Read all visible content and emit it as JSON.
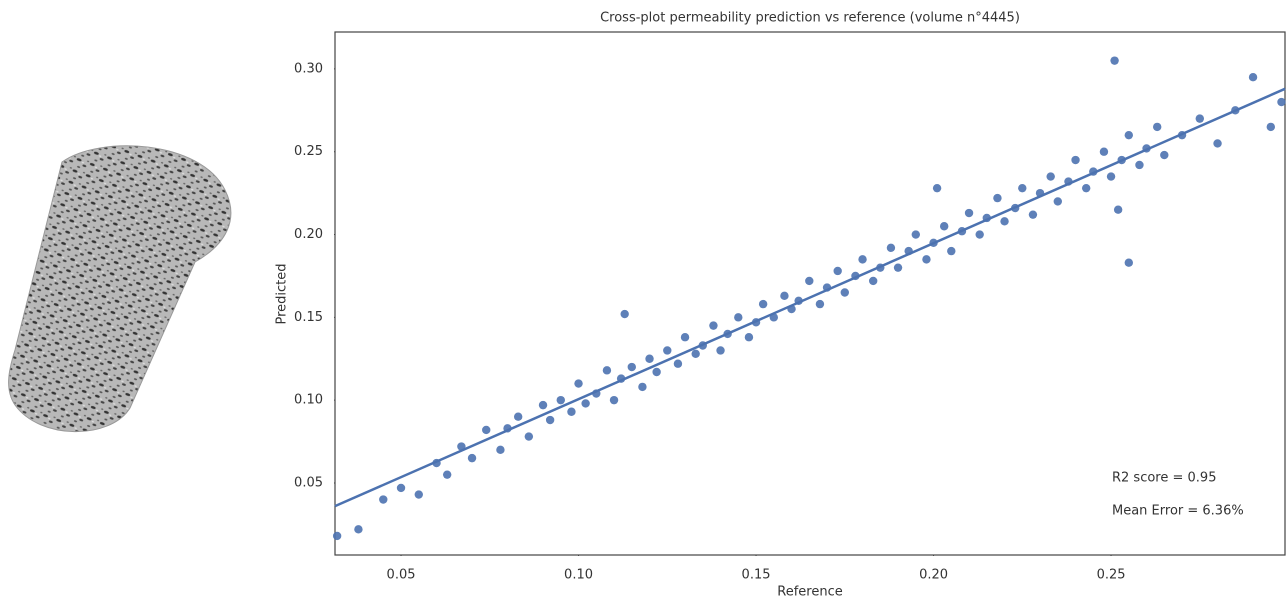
{
  "chart_data": {
    "type": "scatter",
    "title": "Cross-plot permeability prediction vs reference (volume n°4445)",
    "x_label": "Reference",
    "y_label": "Predicted",
    "annotations": [
      "R2 score = 0.95",
      "Mean Error = 6.36%"
    ],
    "color": "#4c72b0",
    "x": [
      0.032,
      0.038,
      0.045,
      0.05,
      0.055,
      0.06,
      0.063,
      0.067,
      0.07,
      0.074,
      0.078,
      0.08,
      0.083,
      0.086,
      0.09,
      0.092,
      0.095,
      0.098,
      0.1,
      0.102,
      0.105,
      0.108,
      0.11,
      0.112,
      0.115,
      0.118,
      0.12,
      0.122,
      0.125,
      0.128,
      0.13,
      0.133,
      0.135,
      0.138,
      0.14,
      0.142,
      0.145,
      0.148,
      0.15,
      0.152,
      0.155,
      0.158,
      0.16,
      0.162,
      0.165,
      0.168,
      0.17,
      0.173,
      0.175,
      0.178,
      0.18,
      0.183,
      0.185,
      0.188,
      0.19,
      0.193,
      0.195,
      0.198,
      0.2,
      0.203,
      0.205,
      0.208,
      0.21,
      0.213,
      0.215,
      0.218,
      0.22,
      0.223,
      0.225,
      0.228,
      0.23,
      0.233,
      0.235,
      0.238,
      0.24,
      0.243,
      0.245,
      0.248,
      0.25,
      0.253,
      0.255,
      0.258,
      0.26,
      0.263,
      0.265,
      0.27,
      0.275,
      0.28,
      0.285,
      0.29,
      0.295,
      0.298,
      0.113,
      0.201,
      0.251,
      0.252,
      0.255
    ],
    "y": [
      0.018,
      0.022,
      0.04,
      0.047,
      0.043,
      0.062,
      0.055,
      0.072,
      0.065,
      0.082,
      0.07,
      0.083,
      0.09,
      0.078,
      0.097,
      0.088,
      0.1,
      0.093,
      0.11,
      0.098,
      0.104,
      0.118,
      0.1,
      0.113,
      0.12,
      0.108,
      0.125,
      0.117,
      0.13,
      0.122,
      0.138,
      0.128,
      0.133,
      0.145,
      0.13,
      0.14,
      0.15,
      0.138,
      0.147,
      0.158,
      0.15,
      0.163,
      0.155,
      0.16,
      0.172,
      0.158,
      0.168,
      0.178,
      0.165,
      0.175,
      0.185,
      0.172,
      0.18,
      0.192,
      0.18,
      0.19,
      0.2,
      0.185,
      0.195,
      0.205,
      0.19,
      0.202,
      0.213,
      0.2,
      0.21,
      0.222,
      0.208,
      0.216,
      0.228,
      0.212,
      0.225,
      0.235,
      0.22,
      0.232,
      0.245,
      0.228,
      0.238,
      0.25,
      0.235,
      0.245,
      0.26,
      0.242,
      0.252,
      0.265,
      0.248,
      0.26,
      0.27,
      0.255,
      0.275,
      0.295,
      0.265,
      0.28,
      0.152,
      0.228,
      0.305,
      0.215,
      0.183
    ],
    "fit_line": {
      "x": [
        0.0314,
        0.299
      ],
      "y": [
        0.036,
        0.288
      ]
    },
    "xlim": [
      0.0314,
      0.299
    ],
    "ylim": [
      0.0065,
      0.3223
    ],
    "xticks": [
      0.05,
      {
        "value": 0.1,
        "label": "0.10"
      },
      0.15,
      {
        "value": 0.2,
        "label": "0.20"
      },
      0.25
    ],
    "yticks": [
      0.05,
      {
        "value": 0.1,
        "label": "0.10"
      },
      0.15,
      {
        "value": 0.2,
        "label": "0.20"
      },
      0.25,
      {
        "value": 0.3,
        "label": "0.30"
      }
    ],
    "grid": false
  }
}
